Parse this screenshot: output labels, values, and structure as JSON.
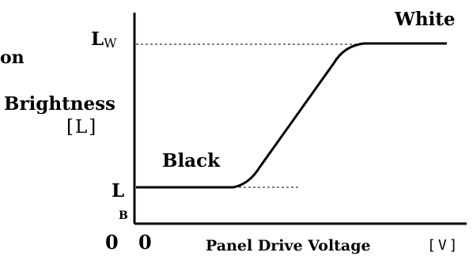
{
  "labels": {
    "white": "White",
    "black": "Black",
    "lw_main": "L",
    "lw_sub": "W",
    "lb_main": "L",
    "lb_sub": "B",
    "left_fragment": "on",
    "y_title": "Brightness",
    "y_unit": "[L]",
    "y_origin": "0",
    "x_origin": "0",
    "x_title": "Panel Drive Voltage",
    "x_unit": "[V]"
  },
  "colors": {
    "line": "#000000",
    "background": "#ffffff"
  }
}
